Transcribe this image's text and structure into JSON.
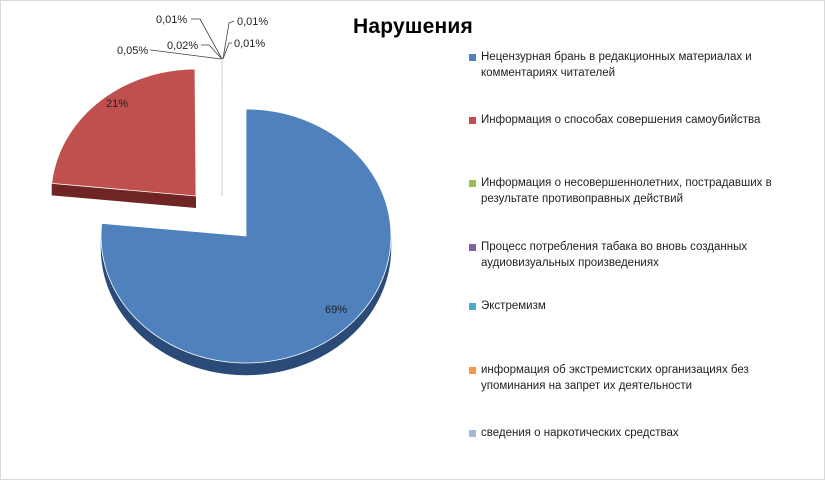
{
  "chart_data": {
    "type": "pie",
    "title": "Нарушения",
    "slices": [
      {
        "label": "Нецензурная брань в редакционных материалах и комментариях читателей",
        "value": 69,
        "value_label": "69%",
        "color": "#4f81bd",
        "side_color": "#2a4a78"
      },
      {
        "label": "Информация о способах совершения  самоубийства",
        "value": 21,
        "value_label": "21%",
        "color": "#c0504d",
        "side_color": "#6e2523"
      },
      {
        "label": "Информация о несовершеннолетних,  пострадавших в результате противоправных действий",
        "value": 0.01,
        "value_label": "0,01%",
        "color": "#9bbb59",
        "side_color": "#5b7130"
      },
      {
        "label": "Процесс потребления табака во вновь созданных аудиовизуальных произведениях",
        "value": 0.01,
        "value_label": "0,01%",
        "color": "#8064a2",
        "side_color": "#4b3663"
      },
      {
        "label": "Экстремизм",
        "value": 0.02,
        "value_label": "0,02%",
        "color": "#4bacc6",
        "side_color": "#276a7c"
      },
      {
        "label": "информация об экстремистских организациях без упоминания на запрет их деятельности",
        "value": 0.05,
        "value_label": "0,05%",
        "color": "#f79646",
        "side_color": "#9c5518"
      },
      {
        "label": "сведения  о наркотических средствах",
        "value": 0.01,
        "value_label": "0,01%",
        "color": "#a5b8d6",
        "side_color": "#647a9a"
      }
    ],
    "legend_position": "right",
    "exploded": true,
    "three_d": true
  }
}
